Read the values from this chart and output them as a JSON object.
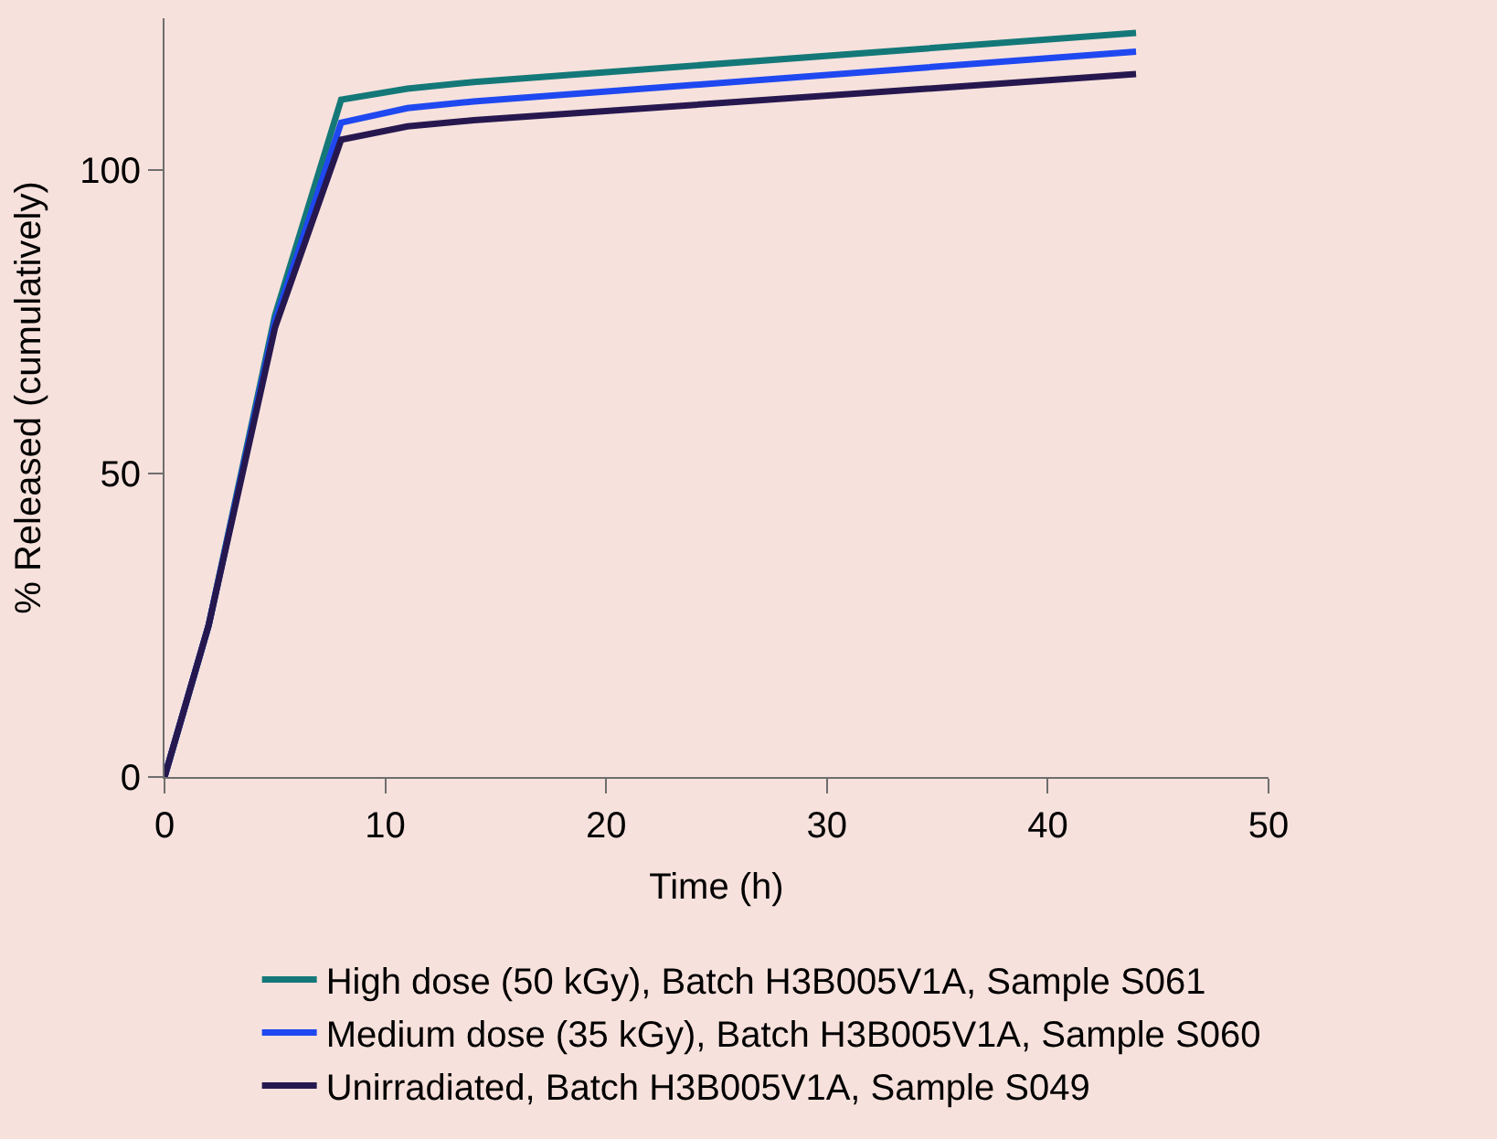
{
  "chart_data": {
    "type": "line",
    "xlabel": "Time (h)",
    "ylabel": "% Released (cumulatively)",
    "xlim": [
      0,
      50
    ],
    "xticks": [
      0,
      10,
      20,
      30,
      40,
      50
    ],
    "ylim": [
      0,
      125
    ],
    "yticks": [
      0,
      50,
      100
    ],
    "grid": false,
    "legend": "bottom",
    "marker": "none",
    "line_style": "solid",
    "x": [
      0,
      2,
      5,
      8,
      11,
      14,
      44
    ],
    "series": [
      {
        "name": "High dose (50 kGy), Batch H3B005V1A, Sample S061",
        "color": "#147878",
        "values": [
          0,
          25,
          76,
          111.6,
          113.4,
          114.5,
          122.6
        ]
      },
      {
        "name": "Medium dose (35 kGy), Batch H3B005V1A, Sample S060",
        "color": "#1f48f0",
        "values": [
          0,
          25,
          75,
          107.8,
          110.2,
          111.3,
          119.5
        ]
      },
      {
        "name": "Unirradiated, Batch H3B005V1A, Sample S049",
        "color": "#26184f",
        "values": [
          0,
          25,
          74,
          105,
          107.2,
          108.2,
          115.8
        ]
      }
    ]
  }
}
